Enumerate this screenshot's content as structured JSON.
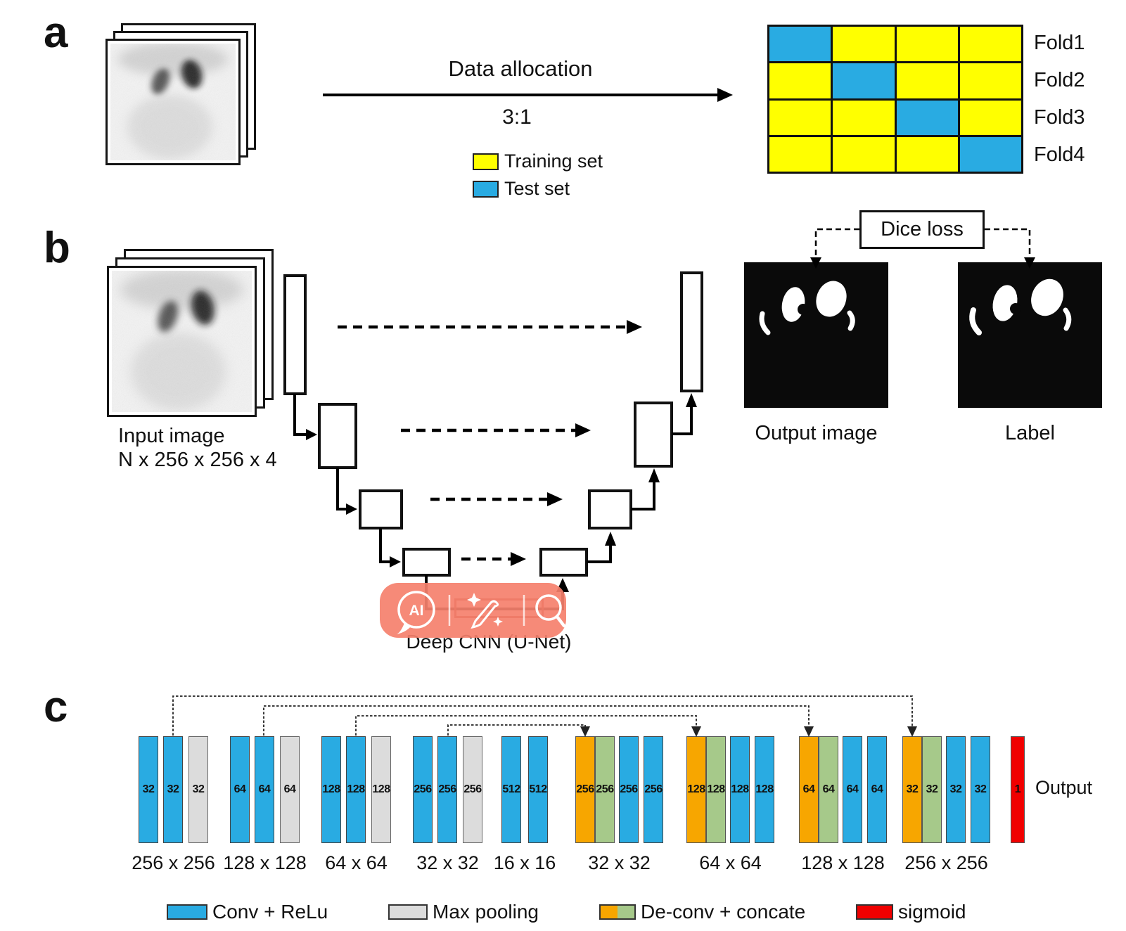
{
  "figure": {
    "panel_a": {
      "label": "a",
      "arrow_title": "Data allocation",
      "ratio": "3:1",
      "legend": [
        {
          "label": "Training set",
          "color": "#FFFF00"
        },
        {
          "label": "Test set",
          "color": "#29ABE2"
        }
      ],
      "folds": {
        "rows": [
          {
            "label": "Fold1",
            "cells": [
              "test",
              "train",
              "train",
              "train"
            ]
          },
          {
            "label": "Fold2",
            "cells": [
              "train",
              "test",
              "train",
              "train"
            ]
          },
          {
            "label": "Fold3",
            "cells": [
              "train",
              "train",
              "test",
              "train"
            ]
          },
          {
            "label": "Fold4",
            "cells": [
              "train",
              "train",
              "train",
              "test"
            ]
          }
        ]
      }
    },
    "panel_b": {
      "label": "b",
      "input_caption_line1": "Input image",
      "input_caption_line2": "N x 256 x 256 x 4",
      "dice_loss_label": "Dice loss",
      "output_image_caption": "Output image",
      "label_caption": "Label",
      "cnn_caption": "Deep CNN (U-Net)",
      "overlay_toolbar": {
        "color": "#F5806C",
        "icons": [
          {
            "name": "ai-chat",
            "text": "AI"
          },
          {
            "name": "edit-sparkles"
          },
          {
            "name": "magnifier"
          }
        ]
      }
    },
    "panel_c": {
      "label": "c",
      "groups": [
        {
          "size": "256 x 256",
          "bars": [
            {
              "type": "conv",
              "n": "32"
            },
            {
              "type": "conv",
              "n": "32"
            },
            {
              "type": "pool",
              "n": "32"
            }
          ]
        },
        {
          "size": "128 x 128",
          "bars": [
            {
              "type": "conv",
              "n": "64"
            },
            {
              "type": "conv",
              "n": "64"
            },
            {
              "type": "pool",
              "n": "64"
            }
          ]
        },
        {
          "size": "64 x 64",
          "bars": [
            {
              "type": "conv",
              "n": "128"
            },
            {
              "type": "conv",
              "n": "128"
            },
            {
              "type": "pool",
              "n": "128"
            }
          ]
        },
        {
          "size": "32 x 32",
          "bars": [
            {
              "type": "conv",
              "n": "256"
            },
            {
              "type": "conv",
              "n": "256"
            },
            {
              "type": "pool",
              "n": "256"
            }
          ]
        },
        {
          "size": "16 x 16",
          "bars": [
            {
              "type": "conv",
              "n": "512"
            },
            {
              "type": "conv",
              "n": "512"
            }
          ]
        },
        {
          "size": "32 x 32",
          "bars": [
            {
              "type": "deconv",
              "n": "256"
            },
            {
              "type": "concat",
              "n": "256"
            },
            {
              "type": "conv",
              "n": "256"
            },
            {
              "type": "conv",
              "n": "256"
            }
          ]
        },
        {
          "size": "64 x 64",
          "bars": [
            {
              "type": "deconv",
              "n": "128"
            },
            {
              "type": "concat",
              "n": "128"
            },
            {
              "type": "conv",
              "n": "128"
            },
            {
              "type": "conv",
              "n": "128"
            }
          ]
        },
        {
          "size": "128 x 128",
          "bars": [
            {
              "type": "deconv",
              "n": "64"
            },
            {
              "type": "concat",
              "n": "64"
            },
            {
              "type": "conv",
              "n": "64"
            },
            {
              "type": "conv",
              "n": "64"
            }
          ]
        },
        {
          "size": "256 x 256",
          "bars": [
            {
              "type": "deconv",
              "n": "32"
            },
            {
              "type": "concat",
              "n": "32"
            },
            {
              "type": "conv",
              "n": "32"
            },
            {
              "type": "conv",
              "n": "32"
            }
          ]
        }
      ],
      "output_bar": {
        "type": "sigmoid",
        "n": "1"
      },
      "output_text": "Output",
      "legend": [
        {
          "label": "Conv + ReLu",
          "type": "conv"
        },
        {
          "label": "Max pooling",
          "type": "pool"
        },
        {
          "label": "De-conv + concate",
          "type": "deconv-concat"
        },
        {
          "label": "sigmoid",
          "type": "sigmoid"
        }
      ],
      "colors": {
        "conv": "#29ABE2",
        "pool": "#DCDCDC",
        "deconv": "#F7A600",
        "concat": "#A6C98A",
        "sigmoid": "#F00000"
      }
    }
  }
}
